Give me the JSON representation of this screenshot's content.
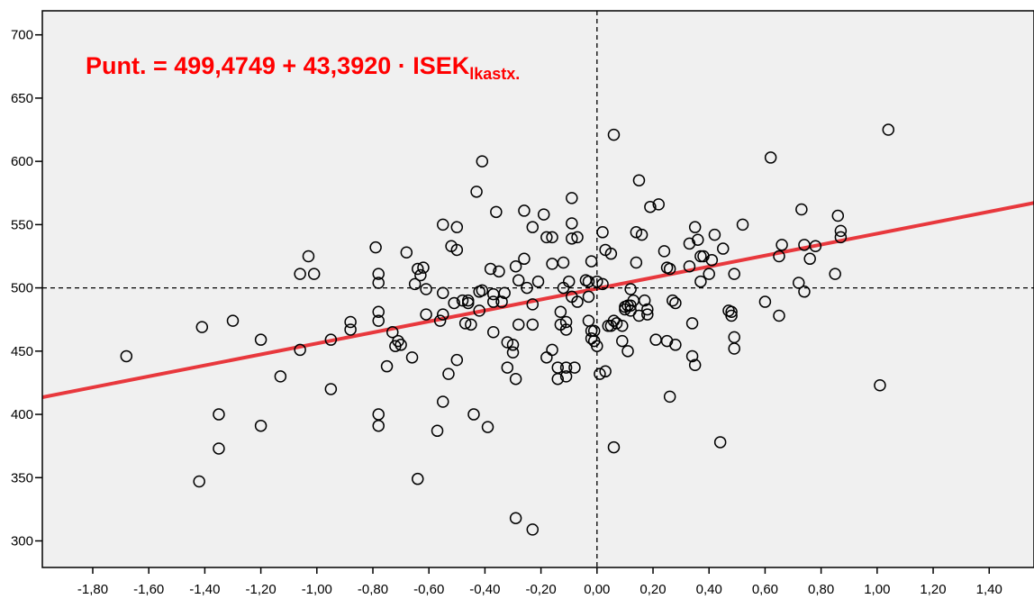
{
  "chart_data": {
    "type": "scatter",
    "title": "",
    "xlabel": "",
    "ylabel": "",
    "xlim": [
      -1.98,
      1.56
    ],
    "ylim": [
      279,
      719
    ],
    "x_ticks": [
      -1.8,
      -1.6,
      -1.4,
      -1.2,
      -1.0,
      -0.8,
      -0.6,
      -0.4,
      -0.2,
      0.0,
      0.2,
      0.4,
      0.6,
      0.8,
      1.0,
      1.2,
      1.4
    ],
    "x_tick_labels": [
      "-1,80",
      "-1,60",
      "-1,40",
      "-1,20",
      "-1,00",
      "-0,80",
      "-0,60",
      "-0,40",
      "-0,20",
      "0,00",
      "0,20",
      "0,40",
      "0,60",
      "0,80",
      "1,00",
      "1,20",
      "1,40"
    ],
    "y_ticks": [
      300,
      350,
      400,
      450,
      500,
      550,
      600,
      650,
      700
    ],
    "y_tick_labels": [
      "300",
      "350",
      "400",
      "450",
      "500",
      "550",
      "600",
      "650",
      "700"
    ],
    "grid": false,
    "reference_lines": {
      "x": 0.0,
      "y": 500,
      "style": "dashed",
      "color": "#000000"
    },
    "regression": {
      "intercept": 499.4749,
      "slope": 43.392,
      "color": "#e8383d"
    },
    "annotation": {
      "text_main": "Punt. = 499,4749 + 43,3920 · ISEK",
      "text_subscript": "lkastx.",
      "color": "#ff0000"
    },
    "colors": {
      "plot_background": "#f0f0f0",
      "marker_stroke": "#000000"
    },
    "series": [
      {
        "marker": "open-circle",
        "points": [
          [
            -1.68,
            446
          ],
          [
            -1.42,
            347
          ],
          [
            -1.41,
            469
          ],
          [
            -1.35,
            400
          ],
          [
            -1.35,
            373
          ],
          [
            -1.3,
            474
          ],
          [
            -1.2,
            459
          ],
          [
            -1.2,
            391
          ],
          [
            -1.13,
            430
          ],
          [
            -1.06,
            511
          ],
          [
            -1.06,
            451
          ],
          [
            -1.03,
            525
          ],
          [
            -1.01,
            511
          ],
          [
            -0.95,
            459
          ],
          [
            -0.95,
            420
          ],
          [
            -0.88,
            467
          ],
          [
            -0.88,
            473
          ],
          [
            -0.79,
            532
          ],
          [
            -0.78,
            511
          ],
          [
            -0.78,
            504
          ],
          [
            -0.78,
            481
          ],
          [
            -0.78,
            474
          ],
          [
            -0.78,
            400
          ],
          [
            -0.78,
            391
          ],
          [
            -0.75,
            438
          ],
          [
            -0.73,
            465
          ],
          [
            -0.72,
            454
          ],
          [
            -0.71,
            458
          ],
          [
            -0.7,
            455
          ],
          [
            -0.68,
            528
          ],
          [
            -0.66,
            445
          ],
          [
            -0.65,
            503
          ],
          [
            -0.64,
            515
          ],
          [
            -0.63,
            510
          ],
          [
            -0.62,
            516
          ],
          [
            -0.61,
            499
          ],
          [
            -0.61,
            479
          ],
          [
            -0.64,
            349
          ],
          [
            -0.57,
            387
          ],
          [
            -0.55,
            550
          ],
          [
            -0.55,
            496
          ],
          [
            -0.55,
            479
          ],
          [
            -0.56,
            474
          ],
          [
            -0.55,
            410
          ],
          [
            -0.53,
            432
          ],
          [
            -0.52,
            533
          ],
          [
            -0.51,
            488
          ],
          [
            -0.5,
            548
          ],
          [
            -0.5,
            530
          ],
          [
            -0.5,
            443
          ],
          [
            -0.48,
            490
          ],
          [
            -0.47,
            472
          ],
          [
            -0.46,
            490
          ],
          [
            -0.46,
            488
          ],
          [
            -0.45,
            471
          ],
          [
            -0.44,
            400
          ],
          [
            -0.43,
            576
          ],
          [
            -0.42,
            497
          ],
          [
            -0.42,
            482
          ],
          [
            -0.41,
            600
          ],
          [
            -0.41,
            498
          ],
          [
            -0.39,
            390
          ],
          [
            -0.38,
            515
          ],
          [
            -0.37,
            495
          ],
          [
            -0.37,
            489
          ],
          [
            -0.37,
            465
          ],
          [
            -0.36,
            560
          ],
          [
            -0.35,
            513
          ],
          [
            -0.34,
            489
          ],
          [
            -0.33,
            496
          ],
          [
            -0.32,
            457
          ],
          [
            -0.32,
            437
          ],
          [
            -0.3,
            455
          ],
          [
            -0.3,
            449
          ],
          [
            -0.29,
            517
          ],
          [
            -0.29,
            428
          ],
          [
            -0.29,
            318
          ],
          [
            -0.28,
            506
          ],
          [
            -0.28,
            471
          ],
          [
            -0.26,
            561
          ],
          [
            -0.26,
            523
          ],
          [
            -0.25,
            500
          ],
          [
            -0.23,
            548
          ],
          [
            -0.23,
            487
          ],
          [
            -0.23,
            471
          ],
          [
            -0.23,
            309
          ],
          [
            -0.21,
            505
          ],
          [
            -0.19,
            558
          ],
          [
            -0.18,
            540
          ],
          [
            -0.18,
            445
          ],
          [
            -0.16,
            540
          ],
          [
            -0.16,
            519
          ],
          [
            -0.16,
            451
          ],
          [
            -0.14,
            428
          ],
          [
            -0.14,
            437
          ],
          [
            -0.13,
            481
          ],
          [
            -0.13,
            471
          ],
          [
            -0.12,
            500
          ],
          [
            -0.12,
            520
          ],
          [
            -0.11,
            473
          ],
          [
            -0.11,
            467
          ],
          [
            -0.11,
            437
          ],
          [
            -0.11,
            430
          ],
          [
            -0.1,
            505
          ],
          [
            -0.09,
            571
          ],
          [
            -0.09,
            551
          ],
          [
            -0.09,
            539
          ],
          [
            -0.09,
            493
          ],
          [
            -0.08,
            437
          ],
          [
            -0.07,
            540
          ],
          [
            -0.07,
            489
          ],
          [
            -0.04,
            506
          ],
          [
            -0.03,
            505
          ],
          [
            -0.03,
            493
          ],
          [
            -0.03,
            474
          ],
          [
            -0.02,
            521
          ],
          [
            -0.02,
            466
          ],
          [
            -0.02,
            460
          ],
          [
            -0.01,
            466
          ],
          [
            -0.01,
            458
          ],
          [
            0.0,
            454
          ],
          [
            0.0,
            505
          ],
          [
            0.01,
            432
          ],
          [
            0.02,
            503
          ],
          [
            0.02,
            544
          ],
          [
            0.03,
            434
          ],
          [
            0.03,
            530
          ],
          [
            0.04,
            470
          ],
          [
            0.05,
            470
          ],
          [
            0.05,
            527
          ],
          [
            0.06,
            474
          ],
          [
            0.06,
            621
          ],
          [
            0.06,
            374
          ],
          [
            0.07,
            472
          ],
          [
            0.09,
            470
          ],
          [
            0.09,
            458
          ],
          [
            0.1,
            483
          ],
          [
            0.1,
            485
          ],
          [
            0.11,
            450
          ],
          [
            0.11,
            486
          ],
          [
            0.12,
            482
          ],
          [
            0.12,
            499
          ],
          [
            0.12,
            486
          ],
          [
            0.13,
            490
          ],
          [
            0.14,
            520
          ],
          [
            0.14,
            544
          ],
          [
            0.15,
            478
          ],
          [
            0.15,
            585
          ],
          [
            0.16,
            542
          ],
          [
            0.17,
            490
          ],
          [
            0.18,
            483
          ],
          [
            0.18,
            479
          ],
          [
            0.19,
            564
          ],
          [
            0.21,
            459
          ],
          [
            0.22,
            566
          ],
          [
            0.24,
            529
          ],
          [
            0.25,
            516
          ],
          [
            0.25,
            458
          ],
          [
            0.26,
            515
          ],
          [
            0.26,
            414
          ],
          [
            0.27,
            490
          ],
          [
            0.28,
            455
          ],
          [
            0.28,
            488
          ],
          [
            0.33,
            535
          ],
          [
            0.33,
            517
          ],
          [
            0.34,
            472
          ],
          [
            0.34,
            446
          ],
          [
            0.35,
            439
          ],
          [
            0.35,
            548
          ],
          [
            0.36,
            538
          ],
          [
            0.37,
            525
          ],
          [
            0.37,
            505
          ],
          [
            0.38,
            525
          ],
          [
            0.4,
            511
          ],
          [
            0.41,
            522
          ],
          [
            0.42,
            542
          ],
          [
            0.44,
            378
          ],
          [
            0.45,
            531
          ],
          [
            0.47,
            482
          ],
          [
            0.48,
            481
          ],
          [
            0.48,
            478
          ],
          [
            0.49,
            452
          ],
          [
            0.49,
            461
          ],
          [
            0.49,
            511
          ],
          [
            0.52,
            550
          ],
          [
            0.6,
            489
          ],
          [
            0.62,
            603
          ],
          [
            0.65,
            478
          ],
          [
            0.65,
            525
          ],
          [
            0.66,
            534
          ],
          [
            0.72,
            504
          ],
          [
            0.73,
            562
          ],
          [
            0.74,
            534
          ],
          [
            0.74,
            497
          ],
          [
            0.76,
            523
          ],
          [
            0.78,
            533
          ],
          [
            0.85,
            511
          ],
          [
            0.86,
            557
          ],
          [
            0.87,
            545
          ],
          [
            0.87,
            540
          ],
          [
            1.01,
            423
          ],
          [
            1.04,
            625
          ]
        ]
      }
    ]
  }
}
